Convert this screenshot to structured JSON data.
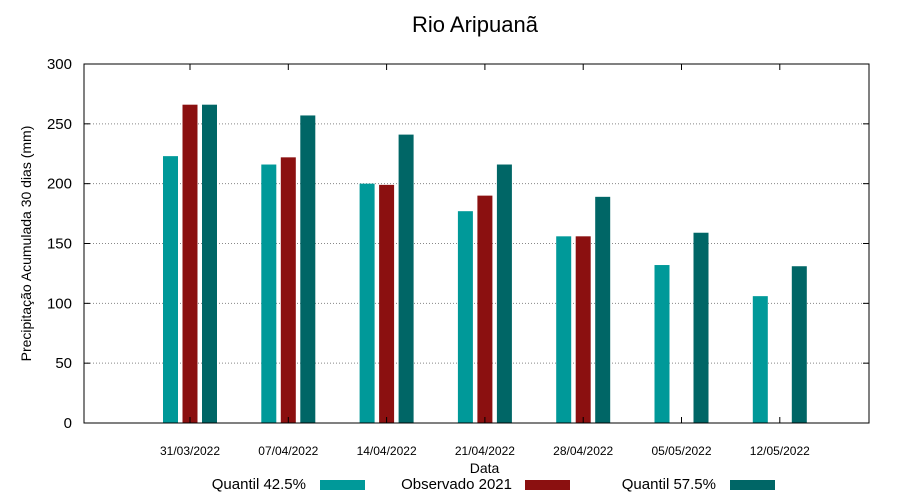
{
  "chart_data": {
    "type": "bar",
    "title": "Rio Aripuanã",
    "xlabel": "Data",
    "ylabel": "Precipitação Acumulada 30 dias (mm)",
    "ylim": [
      0,
      300
    ],
    "yticks": [
      0,
      50,
      100,
      150,
      200,
      250,
      300
    ],
    "grid": true,
    "legend_position": "bottom",
    "categories": [
      "31/03/2022",
      "07/04/2022",
      "14/04/2022",
      "21/04/2022",
      "28/04/2022",
      "05/05/2022",
      "12/05/2022"
    ],
    "series": [
      {
        "name": "Quantil 42.5%",
        "color": "#009999",
        "values": [
          223,
          216,
          200,
          177,
          156,
          132,
          106
        ]
      },
      {
        "name": "Observado 2021",
        "color": "#8b1010",
        "values": [
          266,
          222,
          199,
          190,
          156,
          null,
          null
        ]
      },
      {
        "name": "Quantil 57.5%",
        "color": "#006666",
        "values": [
          266,
          257,
          241,
          216,
          189,
          159,
          131
        ]
      }
    ]
  }
}
